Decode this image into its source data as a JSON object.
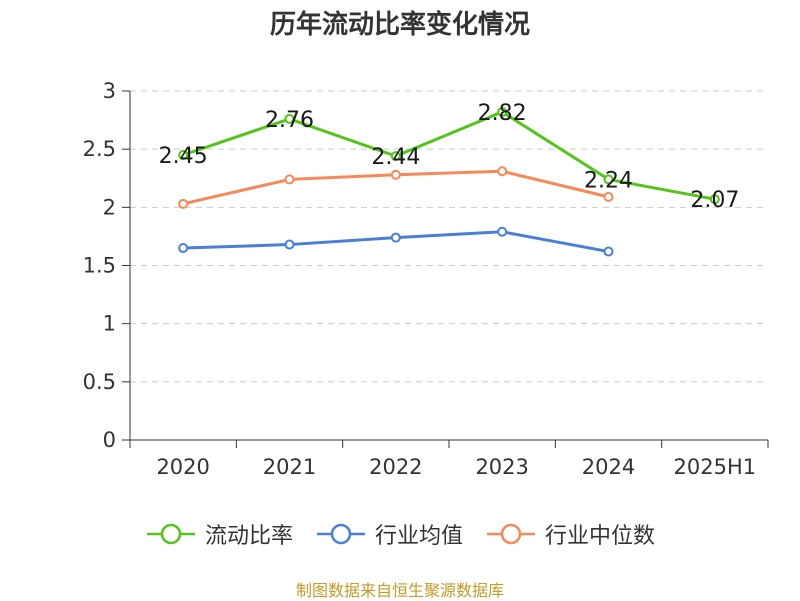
{
  "chart_data": {
    "type": "line",
    "title": "历年流动比率变化情况",
    "categories": [
      "2020",
      "2021",
      "2022",
      "2023",
      "2024",
      "2025H1"
    ],
    "ylim": [
      0,
      3
    ],
    "yticks": [
      "0",
      "0.5",
      "1",
      "1.5",
      "2",
      "2.5",
      "3"
    ],
    "grid": true,
    "legend_position": "bottom",
    "series": [
      {
        "name": "流动比率",
        "color": "#52c41a",
        "values": [
          2.45,
          2.76,
          2.44,
          2.82,
          2.24,
          2.07
        ],
        "data_labels": [
          "2.45",
          "2.76",
          "2.44",
          "2.82",
          "2.24",
          "2.07"
        ]
      },
      {
        "name": "行业均值",
        "color": "#4a7fd6",
        "values": [
          1.65,
          1.68,
          1.74,
          1.79,
          1.62,
          null
        ]
      },
      {
        "name": "行业中位数",
        "color": "#f5895a",
        "values": [
          2.03,
          2.24,
          2.28,
          2.31,
          2.09,
          null
        ]
      }
    ]
  },
  "source_note": "制图数据来自恒生聚源数据库"
}
